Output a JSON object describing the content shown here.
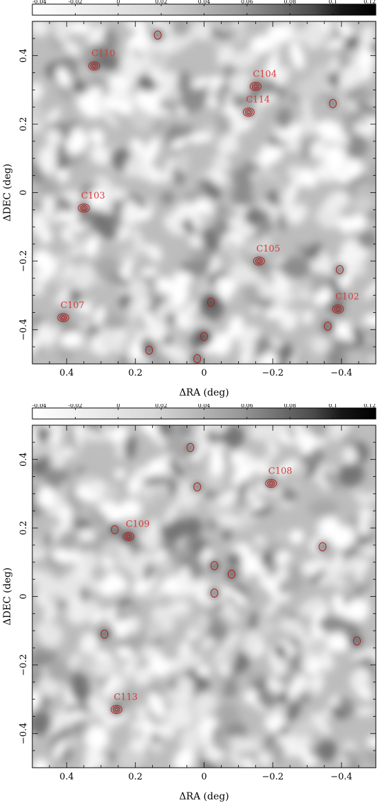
{
  "chart_data": [
    {
      "type": "heatmap",
      "colorbar": {
        "min": -0.04,
        "max": 0.12,
        "ticks": [
          "-0.04",
          "-0.02",
          "0",
          "0.02",
          "0.04",
          "0.06",
          "0.08",
          "0.1",
          "0.12"
        ]
      },
      "xlabel": "ΔRA (deg)",
      "ylabel": "ΔDEC (deg)",
      "xlim": [
        0.5,
        -0.5
      ],
      "ylim": [
        -0.5,
        0.5
      ],
      "x_ticks": [
        "0.4",
        "0.2",
        "0",
        "−0.2",
        "−0.4"
      ],
      "y_ticks": [
        "−0.4",
        "−0.2",
        "0",
        "0.2",
        "0.4"
      ],
      "contour_color": "#b02020",
      "sources": [
        {
          "label": "C110",
          "x": 0.32,
          "y": 0.37
        },
        {
          "label": "C104",
          "x": -0.15,
          "y": 0.31
        },
        {
          "label": "C114",
          "x": -0.13,
          "y": 0.235
        },
        {
          "label": "C103",
          "x": 0.35,
          "y": -0.045
        },
        {
          "label": "C105",
          "x": -0.16,
          "y": -0.2
        },
        {
          "label": "C102",
          "x": -0.39,
          "y": -0.34
        },
        {
          "label": "C107",
          "x": 0.41,
          "y": -0.365
        }
      ],
      "unlabeled_peaks": [
        {
          "x": 0.135,
          "y": 0.46
        },
        {
          "x": -0.375,
          "y": 0.26
        },
        {
          "x": -0.395,
          "y": -0.225
        },
        {
          "x": -0.36,
          "y": -0.39
        },
        {
          "x": 0.16,
          "y": -0.46
        },
        {
          "x": -0.02,
          "y": -0.32
        },
        {
          "x": 0.0,
          "y": -0.42
        },
        {
          "x": 0.02,
          "y": -0.485
        }
      ]
    },
    {
      "type": "heatmap",
      "colorbar": {
        "min": -0.04,
        "max": 0.12,
        "ticks": [
          "-0.04",
          "-0.02",
          "0",
          "0.02",
          "0.04",
          "0.06",
          "0.08",
          "0.1",
          "0.12"
        ]
      },
      "xlabel": "ΔRA (deg)",
      "ylabel": "ΔDEC (deg)",
      "xlim": [
        0.5,
        -0.5
      ],
      "ylim": [
        -0.5,
        0.5
      ],
      "x_ticks": [
        "0.4",
        "0.2",
        "0",
        "−0.2",
        "−0.4"
      ],
      "y_ticks": [
        "−0.4",
        "−0.2",
        "0",
        "0.2",
        "0.4"
      ],
      "contour_color": "#b02020",
      "sources": [
        {
          "label": "C108",
          "x": -0.195,
          "y": 0.33
        },
        {
          "label": "C109",
          "x": 0.22,
          "y": 0.175
        },
        {
          "label": "C113",
          "x": 0.255,
          "y": -0.33
        }
      ],
      "unlabeled_peaks": [
        {
          "x": 0.26,
          "y": 0.195
        },
        {
          "x": 0.04,
          "y": 0.435
        },
        {
          "x": 0.02,
          "y": 0.32
        },
        {
          "x": -0.03,
          "y": 0.09
        },
        {
          "x": -0.08,
          "y": 0.065
        },
        {
          "x": -0.03,
          "y": 0.01
        },
        {
          "x": -0.345,
          "y": 0.145
        },
        {
          "x": 0.29,
          "y": -0.11
        },
        {
          "x": -0.445,
          "y": -0.13
        }
      ]
    }
  ]
}
